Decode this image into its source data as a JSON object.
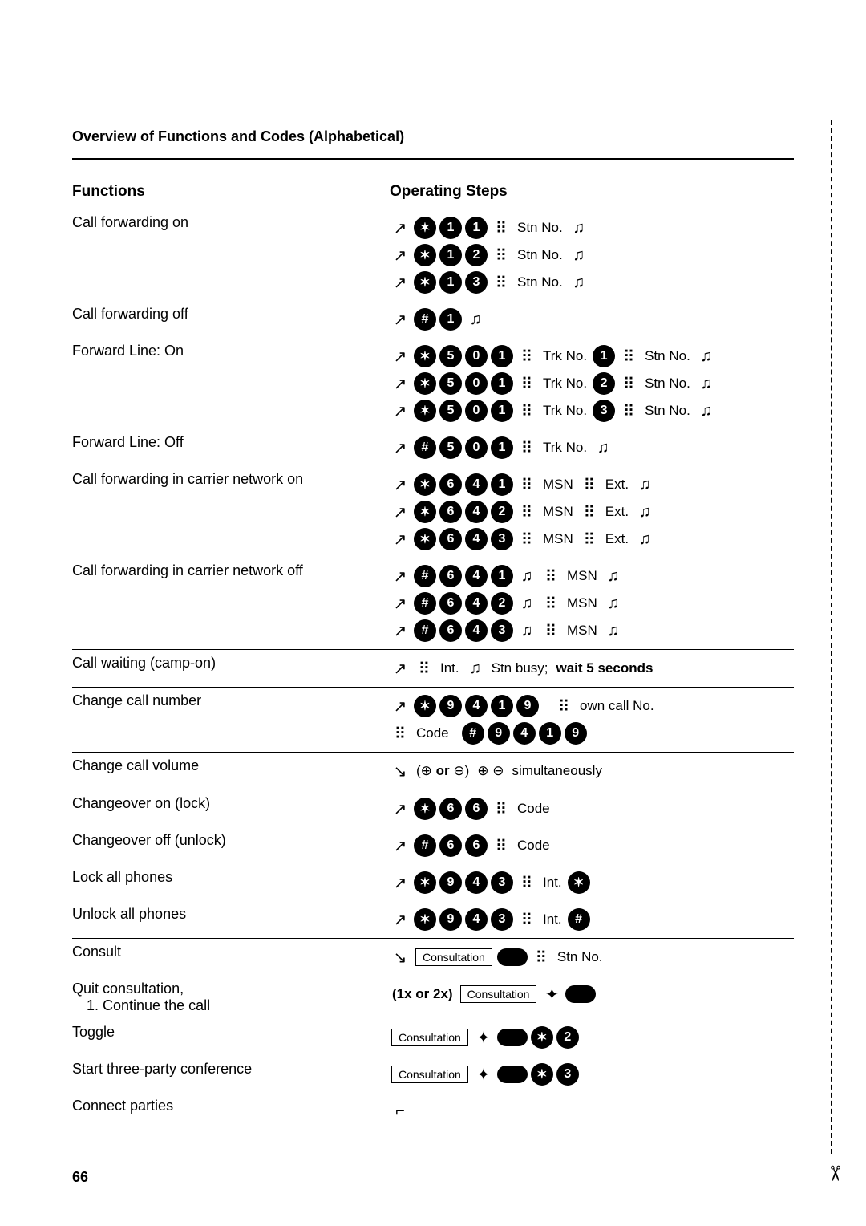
{
  "title": "Overview of Functions and Codes (Alphabetical)",
  "header_functions": "Functions",
  "header_steps": "Operating Steps",
  "page_number": "66",
  "labels": {
    "stn_no": "Stn No.",
    "trk_no": "Trk No.",
    "msn": "MSN",
    "ext": "Ext.",
    "int": "Int.",
    "stn_busy": "Stn busy;",
    "wait5": "wait 5 seconds",
    "own_call_no": "own call No.",
    "code": "Code",
    "simul": "simultaneously",
    "or": "or",
    "one_or_two": "(1x or 2x)",
    "consultation": "Consultation"
  },
  "functions": {
    "call_fwd_on": "Call forwarding on",
    "call_fwd_off": "Call forwarding off",
    "fwd_line_on": "Forward Line: On",
    "fwd_line_off": "Forward Line: Off",
    "cfw_carrier_on": "Call forwarding in carrier network on",
    "cfw_carrier_off": "Call forwarding in carrier network off",
    "call_waiting": "Call waiting (camp-on)",
    "change_call_number": "Change call number",
    "change_call_volume": "Change call volume",
    "changeover_on": "Changeover on (lock)",
    "changeover_off": "Changeover off (unlock)",
    "lock_all": "Lock all phones",
    "unlock_all": "Unlock all phones",
    "consult": "Consult",
    "quit_consult": "Quit consultation,",
    "quit_consult2": "1. Continue the call",
    "toggle": "Toggle",
    "start_conf": "Start three-party conference",
    "connect_parties": "Connect parties"
  },
  "colors": {
    "text": "#000000",
    "bg": "#ffffff"
  }
}
